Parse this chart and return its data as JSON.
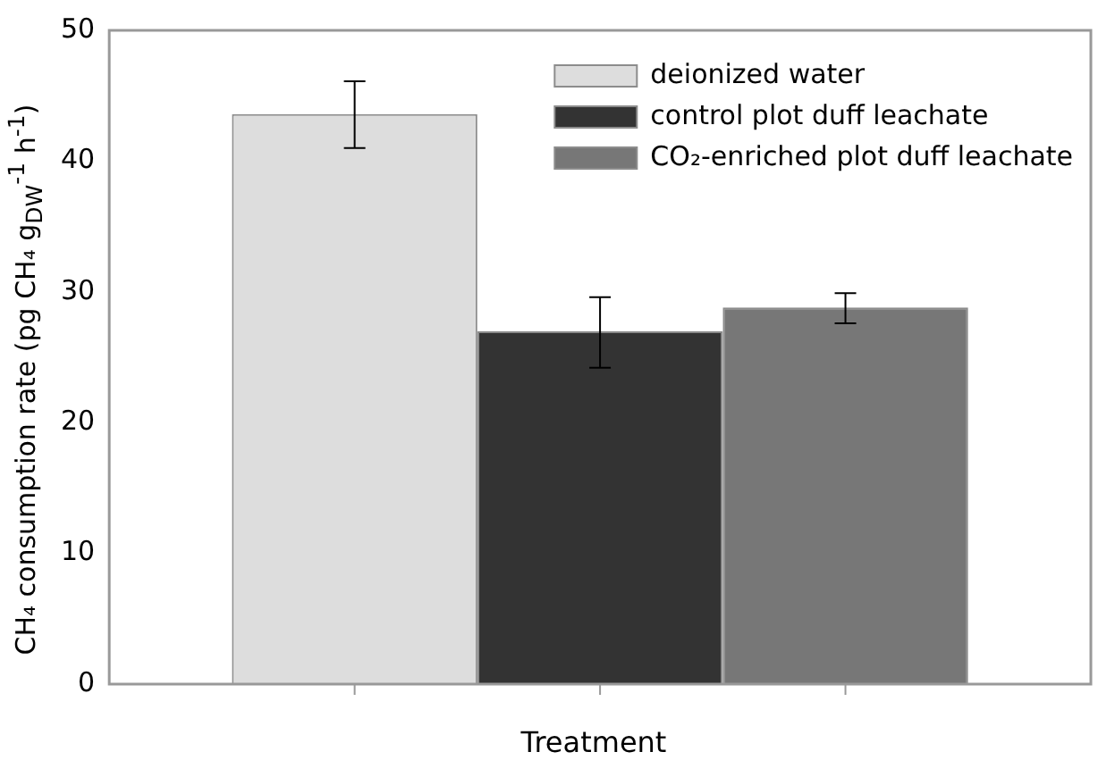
{
  "chart_data": {
    "type": "bar",
    "xlabel": "Treatment",
    "ylabel": "CH₄ consumption rate (pg CH₄ g$_{DW}$$^{-1}$ h$^{-1}$)",
    "categories": [
      null
    ],
    "series": [
      {
        "name": "deionized water",
        "color": "#dddddd",
        "values": [
          43.6
        ],
        "errors": [
          [
            41.0,
            46.1
          ]
        ]
      },
      {
        "name": "control plot duff leachate",
        "color": "#333333",
        "values": [
          27.0
        ],
        "errors": [
          [
            24.2,
            29.6
          ]
        ]
      },
      {
        "name": "CO₂-enriched plot duff leachate",
        "color": "#777777",
        "values": [
          28.8
        ],
        "errors": [
          [
            27.6,
            29.9
          ]
        ]
      }
    ],
    "ylim": [
      0,
      50
    ],
    "yticks": [
      0,
      10,
      20,
      30,
      40,
      50
    ],
    "grid": false,
    "legend": "top right"
  }
}
